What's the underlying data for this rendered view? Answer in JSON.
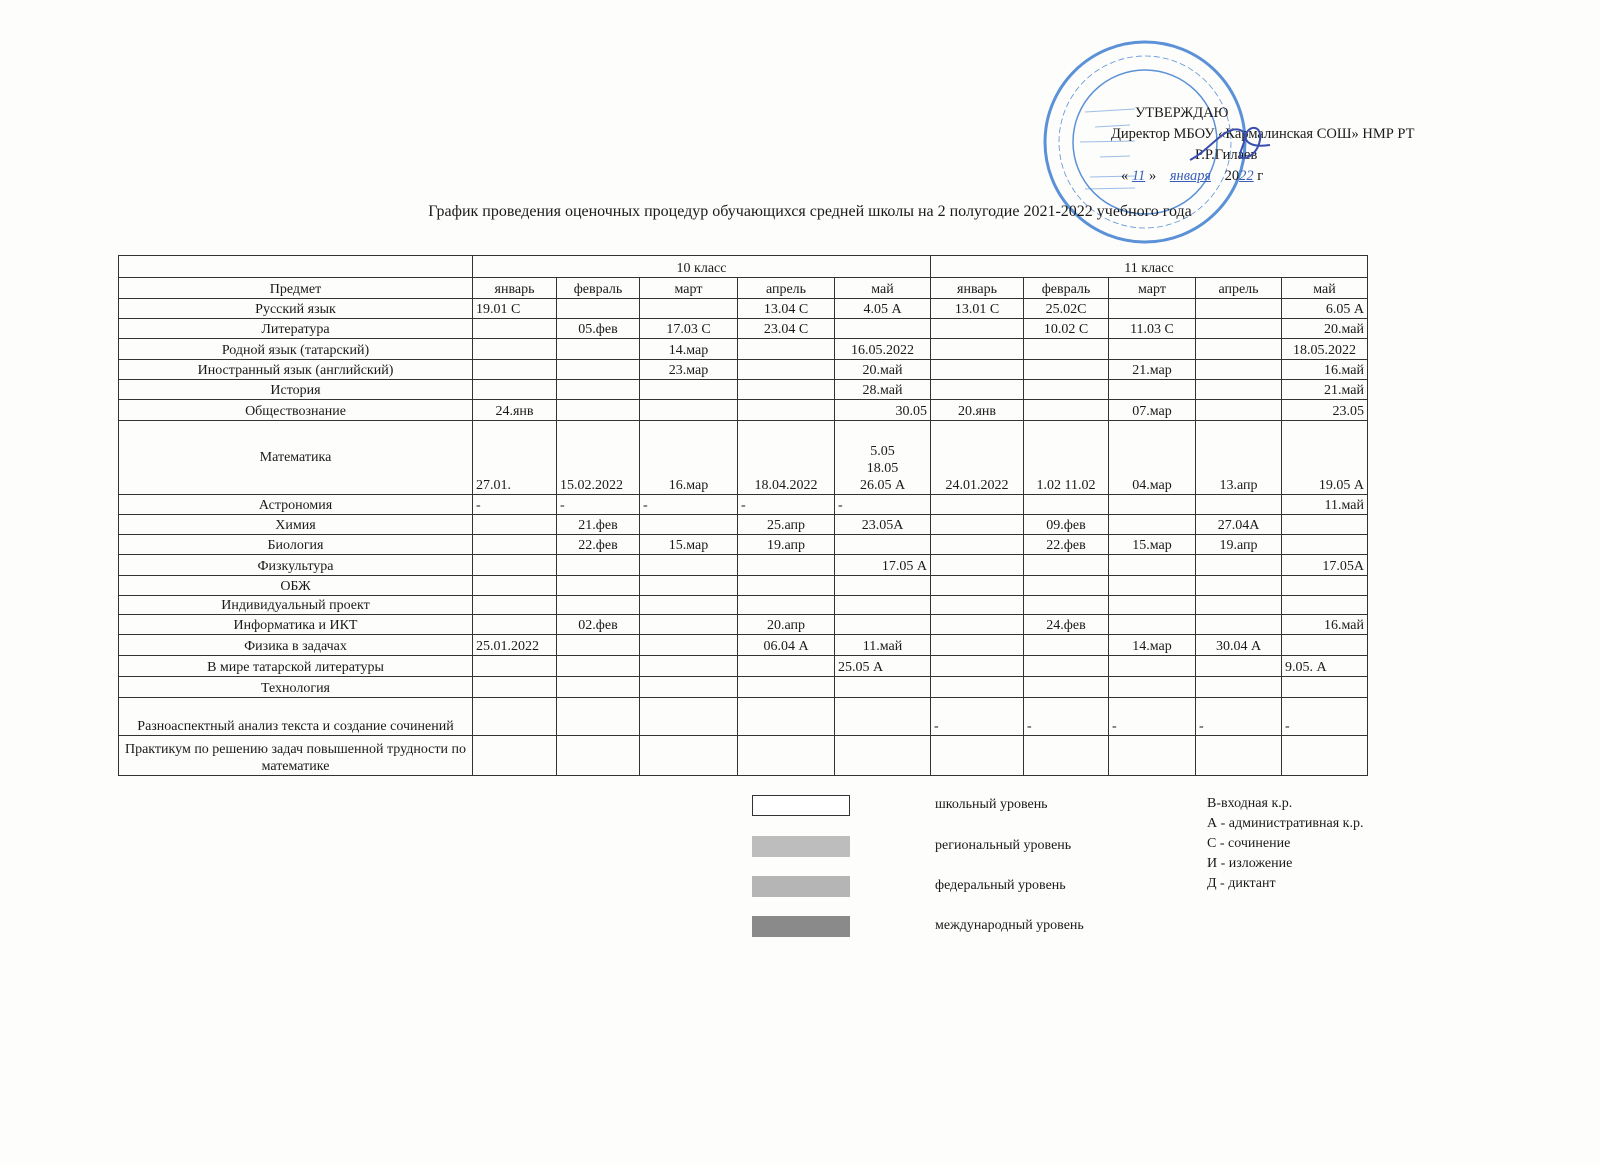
{
  "approval": {
    "line1": "УТВЕРЖДАЮ",
    "line2": "Директор МБОУ «Кармалинская СОШ» НМР РТ",
    "line3": "Р.Р.Гилаев",
    "date_open": "«",
    "date_day": "11",
    "date_mid": "»",
    "date_month": "января",
    "date_year_prefix": "20",
    "date_year": "22",
    "date_suffix": "г"
  },
  "stamp": {
    "text": "МУНИЦИПАЛЬНОЕ БЮДЖЕТНОЕ ОБЩЕОБРАЗОВАТЕЛЬНОЕ УЧРЕЖДЕНИЕ «Кармалинская средняя общеобразовательная школа» Нижнекамского муниципального района Республики Татарстан",
    "color": "#3f7fd0"
  },
  "title": "График проведения оценочных процедур обучающихся средней  школы на 2 полугодие 2021-2022 учебного года",
  "table": {
    "grade10": "10 класс",
    "grade11": "11 класс",
    "subject_header": "Предмет",
    "months": [
      "январь",
      "февраль",
      "март",
      "апрель",
      "май"
    ],
    "rows": [
      {
        "subject": "Русский язык",
        "cells": [
          "19.01 С",
          "",
          "",
          "13.04 С",
          "4.05 А",
          "13.01 С",
          "25.02С",
          "",
          "",
          "6.05 А"
        ]
      },
      {
        "subject": "Литература",
        "cells": [
          "",
          "05.фев",
          "17.03 С",
          "23.04 С",
          "",
          "",
          "10.02 С",
          "11.03 С",
          "",
          "20.май"
        ]
      },
      {
        "subject": "Родной язык (татарский)",
        "cells": [
          "",
          "",
          "14.мар",
          "",
          "16.05.2022",
          "",
          "",
          "",
          "",
          "18.05.2022"
        ]
      },
      {
        "subject": "Иностранный язык (английский)",
        "cells": [
          "",
          "",
          "23.мар",
          "",
          "20.май",
          "",
          "",
          "21.мар",
          "",
          "16.май"
        ]
      },
      {
        "subject": "История",
        "cells": [
          "",
          "",
          "",
          "",
          "28.май",
          "",
          "",
          "",
          "",
          "21.май"
        ]
      },
      {
        "subject": "Обществознание",
        "cells": [
          "24.янв",
          "",
          "",
          "",
          "30.05",
          "20.янв",
          "",
          "07.мар",
          "",
          "23.05"
        ]
      },
      {
        "subject": "Математика",
        "cells": [
          "27.01.",
          "15.02.2022",
          "16.мар",
          "18.04.2022",
          "5.05\n18.05\n26.05 А",
          "24.01.2022",
          "1.02   11.02",
          "04.мар",
          "13.апр",
          "19.05 А"
        ]
      },
      {
        "subject": "Астрономия",
        "cells": [
          "-",
          "-",
          "-",
          "-",
          "-",
          "",
          "",
          "",
          "",
          "11.май"
        ]
      },
      {
        "subject": "Химия",
        "cells": [
          "",
          "21.фев",
          "",
          "25.апр",
          "23.05А",
          "",
          "09.фев",
          "",
          "27.04А",
          ""
        ]
      },
      {
        "subject": "Биология",
        "cells": [
          "",
          "22.фев",
          "15.мар",
          "19.апр",
          "",
          "",
          "22.фев",
          "15.мар",
          "19.апр",
          ""
        ]
      },
      {
        "subject": "Физкультура",
        "cells": [
          "",
          "",
          "",
          "",
          "17.05 А",
          "",
          "",
          "",
          "",
          "17.05А"
        ]
      },
      {
        "subject": "ОБЖ",
        "cells": [
          "",
          "",
          "",
          "",
          "",
          "",
          "",
          "",
          "",
          ""
        ]
      },
      {
        "subject": "Индивидуальный проект",
        "cells": [
          "",
          "",
          "",
          "",
          "",
          "",
          "",
          "",
          "",
          ""
        ]
      },
      {
        "subject": "Информатика и ИКТ",
        "cells": [
          "",
          "02.фев",
          "",
          "20.апр",
          "",
          "",
          "24.фев",
          "",
          "",
          "16.май"
        ]
      },
      {
        "subject": "Физика в задачах",
        "cells": [
          "25.01.2022",
          "",
          "",
          "06.04 А",
          "11.май",
          "",
          "",
          "14.мар",
          "30.04 А",
          ""
        ]
      },
      {
        "subject": "В мире татарской литературы",
        "cells": [
          "",
          "",
          "",
          "",
          "25.05 А",
          "",
          "",
          "",
          "",
          "9.05. А"
        ]
      },
      {
        "subject": "Технология",
        "cells": [
          "",
          "",
          "",
          "",
          "",
          "",
          "",
          "",
          "",
          ""
        ]
      },
      {
        "subject": "Разноаспектный анализ текста и создание сочинений",
        "cells": [
          "",
          "",
          "",
          "",
          "",
          "-",
          "-",
          "-",
          "-",
          "-"
        ]
      },
      {
        "subject": "Практикум по решению задач повышенной трудности по математике",
        "cells": [
          "",
          "",
          "",
          "",
          "",
          "",
          "",
          "",
          "",
          ""
        ]
      }
    ]
  },
  "legend": {
    "levels": [
      {
        "label": "школьный уровень",
        "color": "#ffffff"
      },
      {
        "label": "региональный уровень",
        "color": "#bdbdbd"
      },
      {
        "label": "федеральный уровень",
        "color": "#b5b5b5"
      },
      {
        "label": "международный уровень",
        "color": "#8a8a8a"
      }
    ],
    "abbreviations": [
      "В-входная к.р.",
      "А - административная к.р.",
      "С - сочинение",
      "И - изложение",
      "Д - диктант"
    ]
  }
}
